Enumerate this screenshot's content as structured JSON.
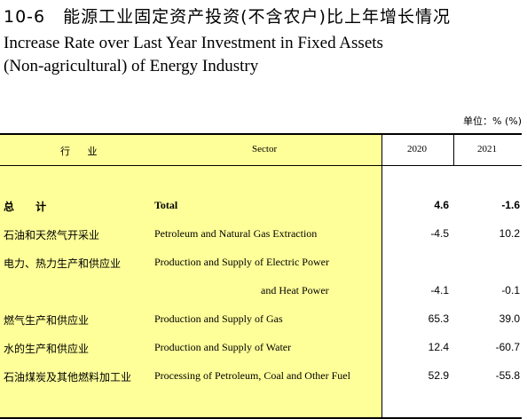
{
  "title": {
    "cn": "10-6　能源工业固定资产投资(不含农户)比上年增长情况",
    "en_line1": "Increase Rate over Last Year Investment in Fixed Assets",
    "en_line2": "(Non-agricultural) of Energy Industry"
  },
  "unit": "单位：% (%)",
  "header": {
    "industry_cn": "行 业",
    "sector": "Sector",
    "col1": "2020",
    "col2": "2021"
  },
  "rows": [
    {
      "cn": "总 计",
      "en": "Total",
      "v2020": "4.6",
      "v2021": "-1.6"
    },
    {
      "cn": "石油和天然气开采业",
      "en": "Petroleum and Natural Gas Extraction",
      "v2020": "-4.5",
      "v2021": "10.2"
    },
    {
      "cn": "电力、热力生产和供应业",
      "en": "Production and Supply of Electric Power",
      "v2020": "",
      "v2021": ""
    },
    {
      "cn": "",
      "en": "and Heat Power",
      "v2020": "-4.1",
      "v2021": "-0.1"
    },
    {
      "cn": "燃气生产和供应业",
      "en": "Production and Supply of Gas",
      "v2020": "65.3",
      "v2021": "39.0"
    },
    {
      "cn": "水的生产和供应业",
      "en": "Production and Supply of Water",
      "v2020": "12.4",
      "v2021": "-60.7"
    },
    {
      "cn": "石油煤炭及其他燃料加工业",
      "en": "Processing of Petroleum, Coal and Other Fuel",
      "v2020": "52.9",
      "v2021": "-55.8"
    }
  ]
}
